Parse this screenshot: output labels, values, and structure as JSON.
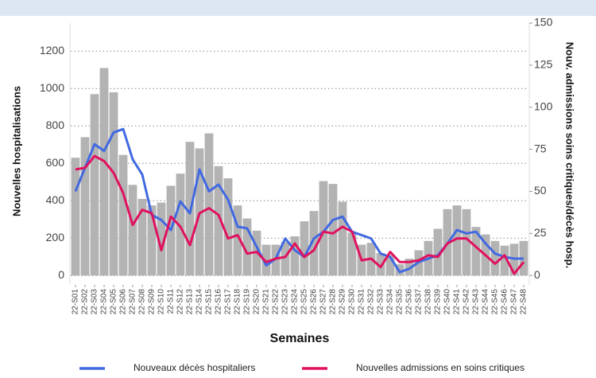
{
  "chart_data": {
    "type": "bar",
    "x_label": "Semaines",
    "y_label": "Nouvelles hospitalisations",
    "y2_label": "Nouv. admissions soins critiques/décès hosp.",
    "categories": [
      "22-S01",
      "22-S02",
      "22-S03",
      "22-S04",
      "22-S05",
      "22-S06",
      "22-S07",
      "22-S08",
      "22-S09",
      "22-S10",
      "22-S11",
      "22-S12",
      "22-S13",
      "22-S14",
      "22-S15",
      "22-S16",
      "22-S17",
      "22-S18",
      "22-S19",
      "22-S20",
      "22-S21",
      "22-S22",
      "22-S23",
      "22-S24",
      "22-S25",
      "22-S26",
      "22-S27",
      "22-S28",
      "22-S29",
      "22-S30",
      "22-S31",
      "22-S32",
      "22-S33",
      "22-S34",
      "22-S35",
      "22-S36",
      "22-S37",
      "22-S38",
      "22-S39",
      "22-S40",
      "22-S41",
      "22-S42",
      "22-S43",
      "22-S44",
      "22-S45",
      "22-S46",
      "22-S47",
      "22-S48"
    ],
    "series": [
      {
        "type": "bar",
        "axis": "y",
        "color": "#b3b3b3",
        "values": [
          630,
          740,
          970,
          1110,
          980,
          645,
          485,
          410,
          375,
          390,
          480,
          545,
          715,
          680,
          760,
          585,
          520,
          375,
          305,
          240,
          165,
          165,
          180,
          210,
          290,
          345,
          505,
          490,
          395,
          230,
          165,
          175,
          120,
          110,
          60,
          90,
          135,
          185,
          250,
          355,
          375,
          355,
          260,
          220,
          185,
          160,
          170,
          185
        ]
      },
      {
        "type": "line",
        "axis": "y2",
        "name": "Nouveaux décès hospitaliers",
        "color": "#4169e1",
        "values": [
          50,
          64,
          78,
          74,
          85,
          87,
          69,
          60,
          36,
          33,
          27,
          44,
          37,
          63,
          50,
          54,
          45,
          29,
          28,
          17,
          6,
          10,
          22,
          15,
          11,
          22,
          26,
          33,
          35,
          26,
          24,
          22,
          13,
          11,
          2,
          4,
          8,
          10,
          12,
          19,
          27,
          25,
          26,
          19,
          13,
          11,
          10,
          10
        ]
      },
      {
        "type": "line",
        "axis": "y2",
        "name": "Nouvelles admissions en soins critiques",
        "color": "#e0115f",
        "values": [
          63,
          64,
          71,
          68,
          61,
          49,
          30,
          39,
          37,
          15,
          35,
          29,
          18,
          37,
          40,
          36,
          22,
          24,
          13,
          14,
          8,
          10,
          11,
          19,
          11,
          15,
          26,
          25,
          29,
          26,
          9,
          10,
          5,
          14,
          8,
          8,
          9,
          12,
          11,
          19,
          22,
          22,
          17,
          12,
          7,
          12,
          1,
          8
        ]
      }
    ],
    "ylim": [
      -50,
      1350
    ],
    "yticks": [
      0,
      200,
      400,
      600,
      800,
      1000,
      1200
    ],
    "y2lim": [
      -5.6,
      150
    ],
    "y2ticks": [
      0,
      25,
      50,
      75,
      100,
      125,
      150
    ],
    "grid": true
  }
}
